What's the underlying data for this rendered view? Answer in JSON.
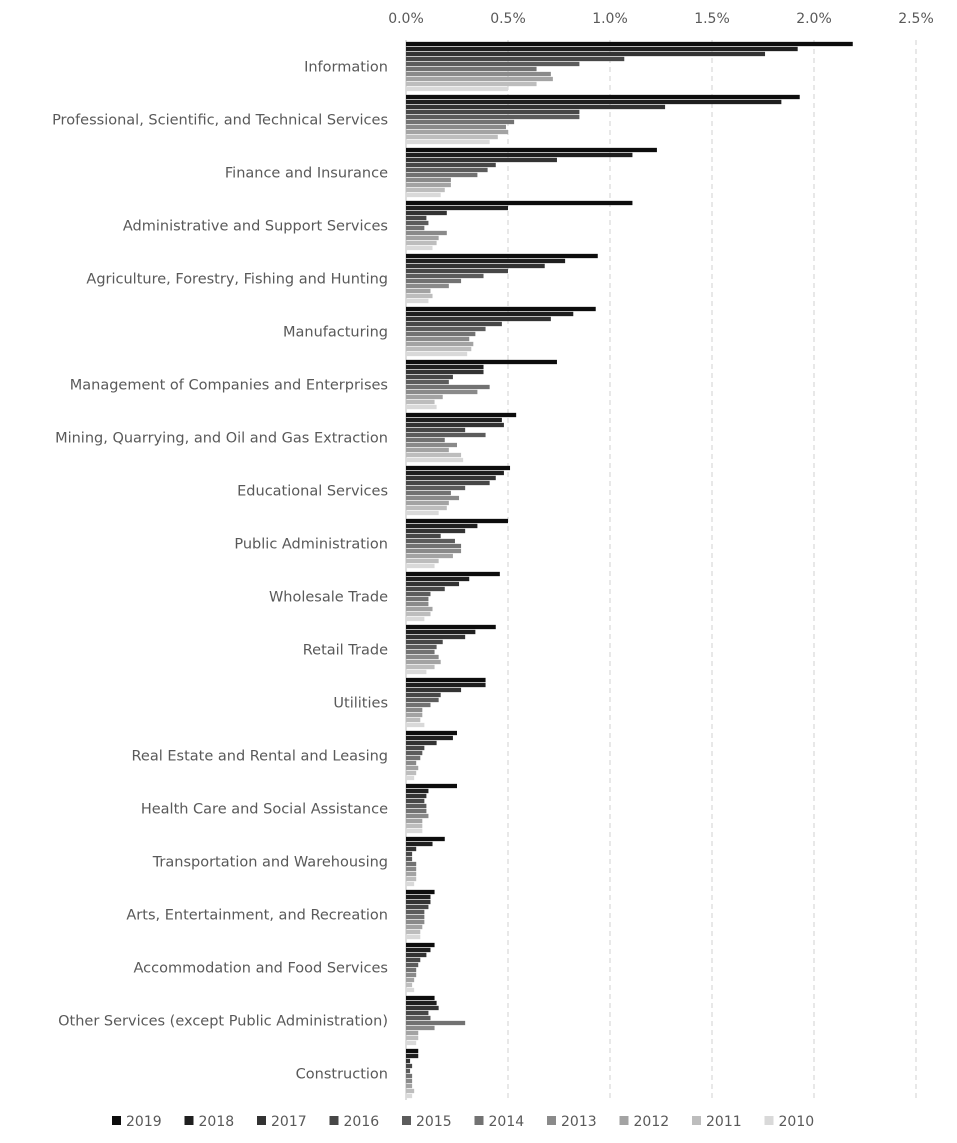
{
  "chart_data": {
    "type": "bar",
    "orientation": "horizontal",
    "title": "",
    "xlabel": "",
    "ylabel": "",
    "xlim": [
      0,
      2.5
    ],
    "x_ticks": [
      "0.0%",
      "0.5%",
      "1.0%",
      "1.5%",
      "2.0%",
      "2.5%"
    ],
    "grid": "vertical dashed",
    "legend_position": "bottom",
    "categories": [
      "Information",
      "Professional, Scientific, and Technical Services",
      "Finance and Insurance",
      "Administrative and Support Services",
      "Agriculture, Forestry, Fishing and Hunting",
      "Manufacturing",
      "Management of Companies and Enterprises",
      "Mining, Quarrying, and Oil and Gas Extraction",
      "Educational Services",
      "Public Administration",
      "Wholesale Trade",
      "Retail Trade",
      "Utilities",
      "Real Estate and Rental and Leasing",
      "Health Care and Social Assistance",
      "Transportation and Warehousing",
      "Arts, Entertainment, and Recreation",
      "Accommodation and Food Services",
      "Other Services (except Public Administration)",
      "Construction"
    ],
    "series": [
      {
        "name": "2019",
        "color": "#0d0d0d",
        "values": [
          2.19,
          1.93,
          1.23,
          1.11,
          0.94,
          0.93,
          0.74,
          0.54,
          0.51,
          0.5,
          0.46,
          0.44,
          0.39,
          0.25,
          0.25,
          0.19,
          0.14,
          0.14,
          0.14,
          0.06
        ]
      },
      {
        "name": "2018",
        "color": "#1f1f1f",
        "values": [
          1.92,
          1.84,
          1.11,
          0.5,
          0.78,
          0.82,
          0.38,
          0.47,
          0.48,
          0.35,
          0.31,
          0.34,
          0.39,
          0.23,
          0.11,
          0.13,
          0.12,
          0.12,
          0.15,
          0.06
        ]
      },
      {
        "name": "2017",
        "color": "#333333",
        "values": [
          1.76,
          1.27,
          0.74,
          0.2,
          0.68,
          0.71,
          0.38,
          0.48,
          0.44,
          0.29,
          0.26,
          0.29,
          0.27,
          0.15,
          0.1,
          0.05,
          0.12,
          0.1,
          0.16,
          0.02
        ]
      },
      {
        "name": "2016",
        "color": "#474747",
        "values": [
          1.07,
          0.85,
          0.44,
          0.1,
          0.5,
          0.47,
          0.23,
          0.29,
          0.41,
          0.17,
          0.19,
          0.18,
          0.17,
          0.09,
          0.09,
          0.03,
          0.11,
          0.07,
          0.11,
          0.03
        ]
      },
      {
        "name": "2015",
        "color": "#5c5c5c",
        "values": [
          0.85,
          0.85,
          0.4,
          0.11,
          0.38,
          0.39,
          0.21,
          0.39,
          0.29,
          0.24,
          0.12,
          0.15,
          0.16,
          0.08,
          0.1,
          0.03,
          0.09,
          0.06,
          0.12,
          0.02
        ]
      },
      {
        "name": "2014",
        "color": "#727272",
        "values": [
          0.64,
          0.53,
          0.35,
          0.09,
          0.27,
          0.34,
          0.41,
          0.19,
          0.22,
          0.27,
          0.11,
          0.14,
          0.12,
          0.07,
          0.1,
          0.05,
          0.09,
          0.05,
          0.29,
          0.03
        ]
      },
      {
        "name": "2013",
        "color": "#8a8a8a",
        "values": [
          0.71,
          0.49,
          0.22,
          0.2,
          0.21,
          0.31,
          0.35,
          0.25,
          0.26,
          0.27,
          0.11,
          0.16,
          0.08,
          0.05,
          0.11,
          0.05,
          0.09,
          0.05,
          0.14,
          0.03
        ]
      },
      {
        "name": "2012",
        "color": "#a3a3a3",
        "values": [
          0.72,
          0.5,
          0.22,
          0.16,
          0.12,
          0.33,
          0.18,
          0.21,
          0.21,
          0.23,
          0.13,
          0.17,
          0.08,
          0.06,
          0.08,
          0.05,
          0.08,
          0.04,
          0.06,
          0.03
        ]
      },
      {
        "name": "2011",
        "color": "#bdbdbd",
        "values": [
          0.64,
          0.45,
          0.19,
          0.15,
          0.13,
          0.32,
          0.14,
          0.27,
          0.2,
          0.16,
          0.12,
          0.14,
          0.07,
          0.05,
          0.08,
          0.05,
          0.07,
          0.03,
          0.06,
          0.04
        ]
      },
      {
        "name": "2010",
        "color": "#d9d9d9",
        "values": [
          0.5,
          0.41,
          0.17,
          0.13,
          0.11,
          0.3,
          0.15,
          0.28,
          0.16,
          0.14,
          0.09,
          0.1,
          0.09,
          0.04,
          0.08,
          0.04,
          0.07,
          0.04,
          0.05,
          0.03
        ]
      }
    ]
  }
}
